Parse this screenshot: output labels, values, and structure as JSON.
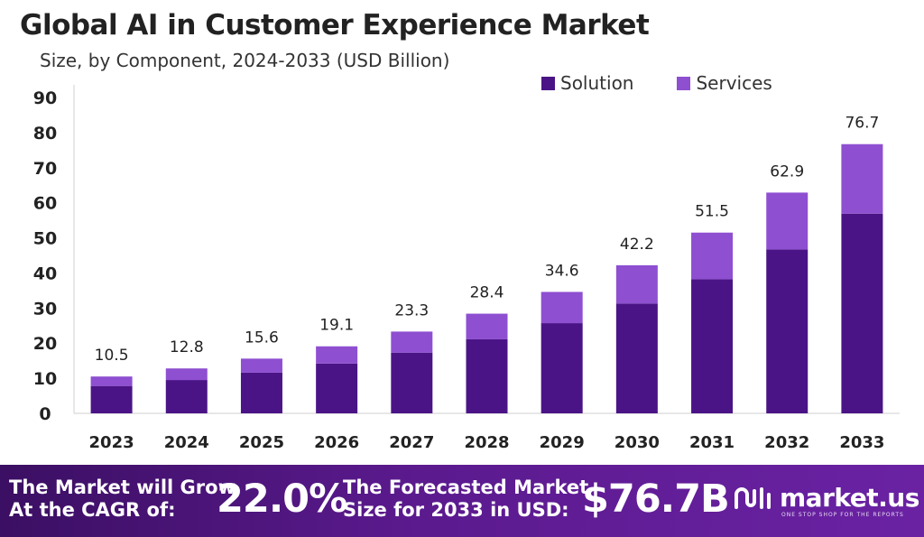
{
  "chart_data": {
    "type": "bar",
    "stacked": true,
    "title": "Global AI in Customer Experience Market",
    "subtitle": "Size, by Component, 2024-2033 (USD Billion)",
    "categories": [
      "2023",
      "2024",
      "2025",
      "2026",
      "2027",
      "2028",
      "2029",
      "2030",
      "2031",
      "2032",
      "2033"
    ],
    "series": [
      {
        "name": "Solution",
        "color": "#4a1486",
        "values": [
          7.8,
          9.5,
          11.6,
          14.2,
          17.3,
          21.1,
          25.7,
          31.3,
          38.2,
          46.7,
          56.9
        ]
      },
      {
        "name": "Services",
        "color": "#8e4fd1",
        "values": [
          2.7,
          3.3,
          4.0,
          4.9,
          6.0,
          7.3,
          8.9,
          10.9,
          13.3,
          16.2,
          19.8
        ]
      }
    ],
    "totals": [
      "10.5",
      "12.8",
      "15.6",
      "19.1",
      "23.3",
      "28.4",
      "34.6",
      "42.2",
      "51.5",
      "62.9",
      "76.7"
    ],
    "ylim": [
      0,
      90
    ],
    "yticks": [
      "0",
      "10",
      "20",
      "30",
      "40",
      "50",
      "60",
      "70",
      "80",
      "90"
    ],
    "grid": false,
    "legend_position": "top-right"
  },
  "footer": {
    "cagr_text_line1": "The Market will Grow",
    "cagr_text_line2": "At the CAGR of:",
    "cagr_value": "22.0%",
    "forecast_text_line1": "The Forecasted Market",
    "forecast_text_line2": "Size for 2033 in USD:",
    "forecast_value": "$76.7B",
    "brand_name": "market.us",
    "brand_tagline": "ONE STOP SHOP FOR THE REPORTS"
  }
}
